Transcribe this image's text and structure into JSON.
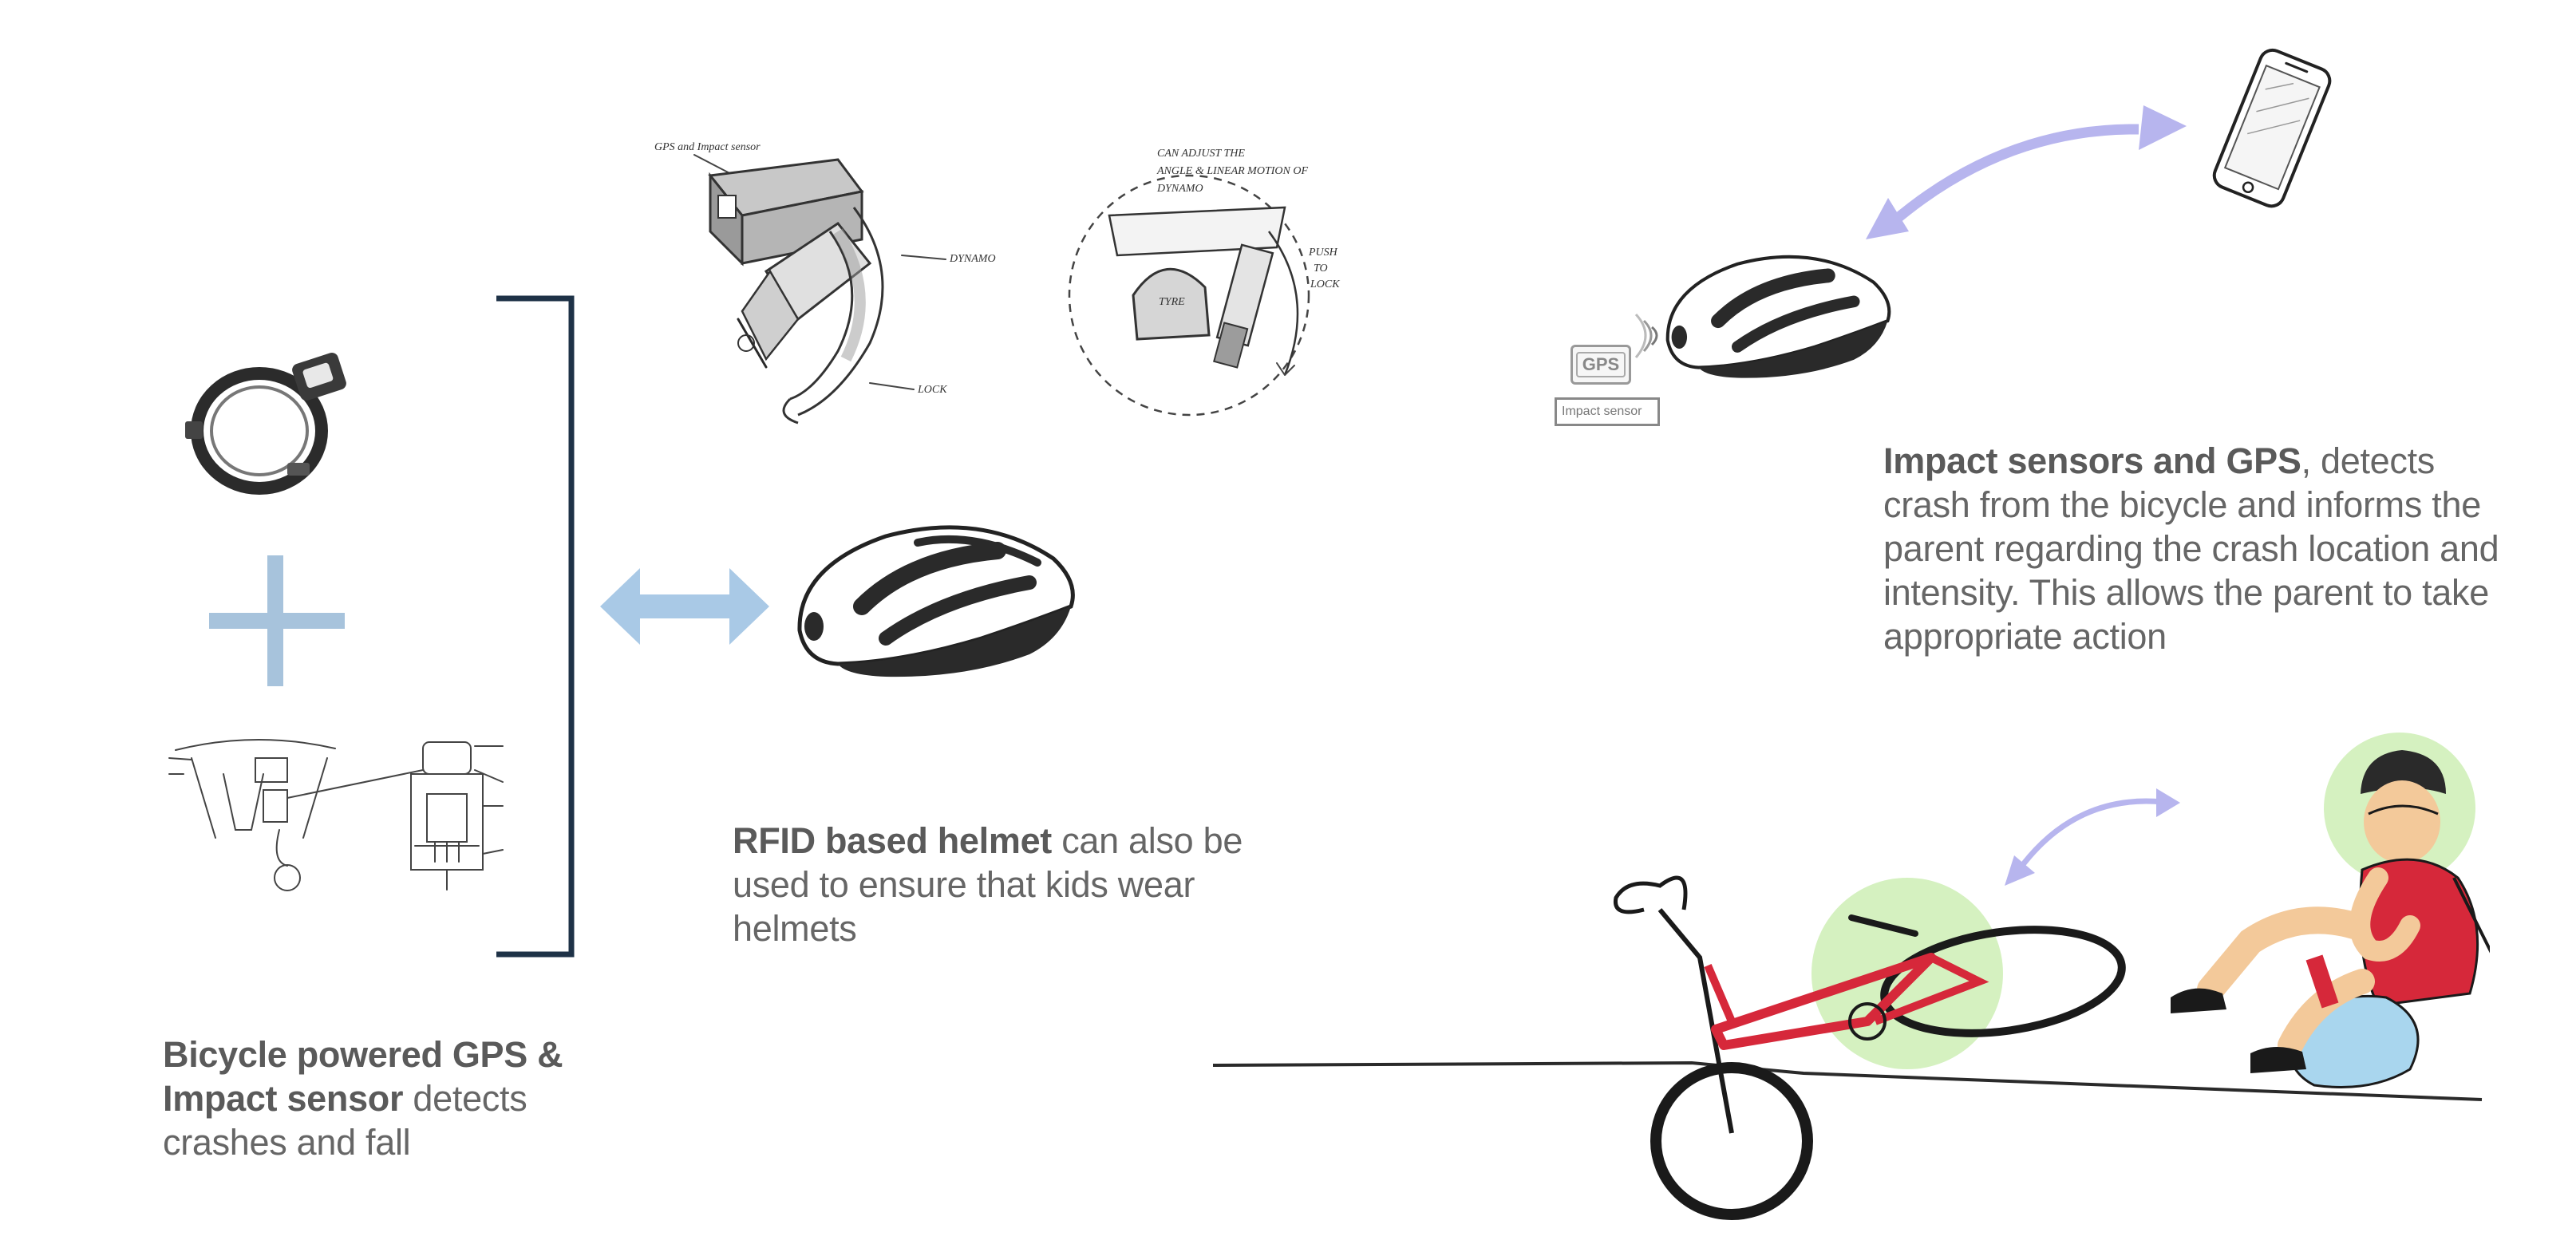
{
  "sketch_labels": {
    "gps_impact_sensor": "GPS and Impact sensor",
    "dynamo": "DYNAMO",
    "lock": "LOCK",
    "can_adjust_1": "CAN ADJUST THE",
    "can_adjust_2": "ANGLE & LINEAR MOTION OF",
    "can_adjust_3": "DYNAMO",
    "tyre": "TYRE",
    "push_1": "PUSH",
    "push_2": "TO",
    "push_3": "LOCK"
  },
  "gps_badge": "GPS",
  "impact_sensor_label": "Impact sensor",
  "captions": {
    "bicycle": {
      "bold": "Bicycle powered GPS & Impact sensor",
      "rest": " detects crashes and fall"
    },
    "rfid": {
      "bold": "RFID based helmet",
      "rest": " can also be used to ensure that kids wear helmets"
    },
    "impact": {
      "bold": "Impact sensors and GPS",
      "rest": ", detects crash from the bicycle and informs the parent regarding the crash location and intensity. This allows the parent to take appropriate action"
    }
  },
  "icons": {
    "ring_dynamo": "ring-dynamo-icon",
    "plus": "plus-icon",
    "helmet": "helmet-icon",
    "phone": "phone-icon",
    "bicycle": "bicycle-icon",
    "child": "child-icon"
  },
  "colors": {
    "bracket": "#1e3247",
    "plus": "#a7c3dc",
    "double_arrow": "#a9c9e6",
    "signal_arrow": "#b7b5ee",
    "highlight_green": "#c7ecab",
    "shirt_red": "#d6283a",
    "skin": "#f3c99a",
    "shorts_blue": "#a9d6ee"
  }
}
